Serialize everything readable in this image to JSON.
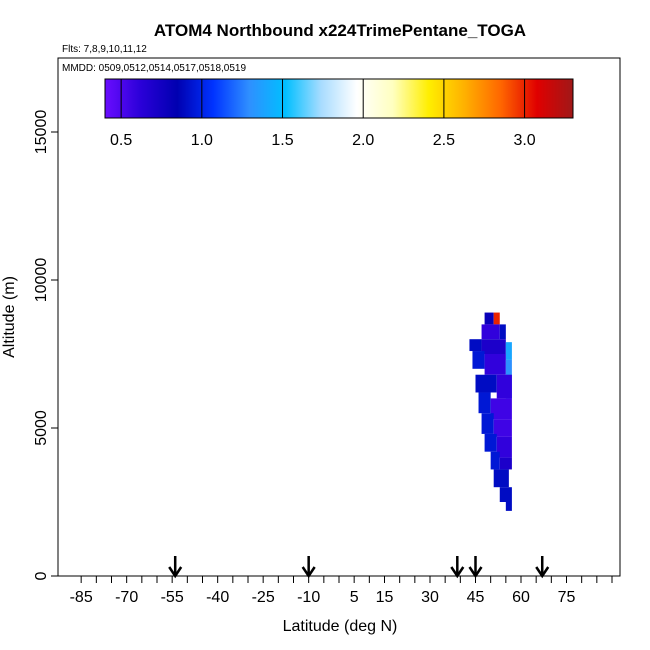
{
  "chart_data": {
    "type": "heatmap",
    "title": "ATOM4 Northbound x224TrimePentane_TOGA",
    "flights_note": "Flts: 7,8,9,10,11,12",
    "dates_note": "MMDD: 0509,0512,0514,0517,0518,0519",
    "xlabel": "Latitude (deg N)",
    "ylabel": "Altitude (m)",
    "xlim": [
      -90,
      90
    ],
    "ylim": [
      0,
      17500
    ],
    "x_ticks": [
      -85,
      -70,
      -55,
      -40,
      -25,
      -10,
      5,
      15,
      30,
      45,
      60,
      75
    ],
    "y_ticks": [
      0,
      5000,
      10000,
      15000
    ],
    "colorbar": {
      "range": [
        0.4,
        3.3
      ],
      "ticks": [
        0.5,
        1.0,
        1.5,
        2.0,
        2.5,
        3.0
      ],
      "tick_labels": [
        "0.5",
        "1.0",
        "1.5",
        "2.0",
        "2.5",
        "3.0"
      ],
      "colors": [
        "#6a0dff",
        "#2a00d8",
        "#0000b0",
        "#0033ff",
        "#2f8fff",
        "#00bfff",
        "#a8dcff",
        "#ffffff",
        "#ffffc0",
        "#ffee00",
        "#ffb000",
        "#ff6600",
        "#e00000",
        "#a01818"
      ]
    },
    "arrows_latitude": [
      -54,
      -10,
      39,
      45,
      67
    ],
    "profile_cells": [
      {
        "lat": [
          48,
          51
        ],
        "alt": [
          8500,
          8900
        ],
        "value": 0.8
      },
      {
        "lat": [
          51,
          53
        ],
        "alt": [
          8500,
          8900
        ],
        "value": 3.0
      },
      {
        "lat": [
          47,
          53
        ],
        "alt": [
          8000,
          8500
        ],
        "value": 0.6
      },
      {
        "lat": [
          53,
          55
        ],
        "alt": [
          8000,
          8500
        ],
        "value": 0.9
      },
      {
        "lat": [
          47,
          55
        ],
        "alt": [
          7500,
          8000
        ],
        "value": 0.7
      },
      {
        "lat": [
          55,
          57
        ],
        "alt": [
          7300,
          7900
        ],
        "value": 1.4
      },
      {
        "lat": [
          43,
          47
        ],
        "alt": [
          7600,
          8000
        ],
        "value": 0.9
      },
      {
        "lat": [
          44,
          48
        ],
        "alt": [
          7000,
          7600
        ],
        "value": 0.95
      },
      {
        "lat": [
          48,
          55
        ],
        "alt": [
          6800,
          7500
        ],
        "value": 0.6
      },
      {
        "lat": [
          55,
          57
        ],
        "alt": [
          6000,
          7300
        ],
        "value": 1.3
      },
      {
        "lat": [
          45,
          52
        ],
        "alt": [
          6200,
          6800
        ],
        "value": 0.9
      },
      {
        "lat": [
          52,
          57
        ],
        "alt": [
          6000,
          6800
        ],
        "value": 0.6
      },
      {
        "lat": [
          46,
          50
        ],
        "alt": [
          5500,
          6200
        ],
        "value": 0.95
      },
      {
        "lat": [
          50,
          57
        ],
        "alt": [
          5300,
          6000
        ],
        "value": 0.55
      },
      {
        "lat": [
          47,
          51
        ],
        "alt": [
          4800,
          5500
        ],
        "value": 0.95
      },
      {
        "lat": [
          51,
          57
        ],
        "alt": [
          4700,
          5300
        ],
        "value": 0.55
      },
      {
        "lat": [
          48,
          52
        ],
        "alt": [
          4200,
          4800
        ],
        "value": 0.95
      },
      {
        "lat": [
          52,
          57
        ],
        "alt": [
          4000,
          4700
        ],
        "value": 0.6
      },
      {
        "lat": [
          50,
          53
        ],
        "alt": [
          3600,
          4200
        ],
        "value": 0.95
      },
      {
        "lat": [
          53,
          57
        ],
        "alt": [
          3600,
          4000
        ],
        "value": 0.7
      },
      {
        "lat": [
          51,
          56
        ],
        "alt": [
          3000,
          3600
        ],
        "value": 0.9
      },
      {
        "lat": [
          53,
          57
        ],
        "alt": [
          2500,
          3000
        ],
        "value": 0.9
      },
      {
        "lat": [
          55,
          57
        ],
        "alt": [
          2200,
          2500
        ],
        "value": 0.9
      }
    ],
    "grid": false,
    "legend": "none"
  }
}
